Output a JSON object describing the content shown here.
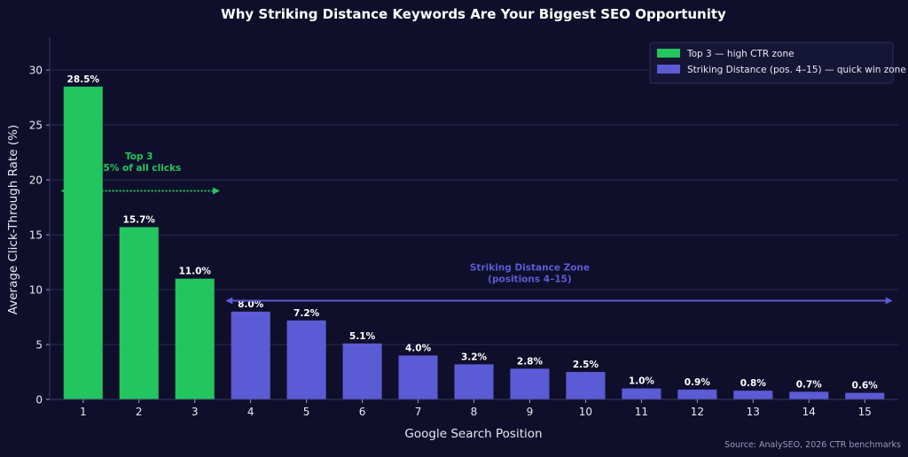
{
  "chart_data": {
    "type": "bar",
    "title": "Why Striking Distance Keywords Are Your Biggest SEO Opportunity",
    "xlabel": "Google Search Position",
    "ylabel": "Average Click-Through Rate (%)",
    "ylim": [
      0,
      33
    ],
    "yticks": [
      0,
      5,
      10,
      15,
      20,
      25,
      30
    ],
    "grid": true,
    "legend_position": "top-right",
    "categories": [
      "1",
      "2",
      "3",
      "4",
      "5",
      "6",
      "7",
      "8",
      "9",
      "10",
      "11",
      "12",
      "13",
      "14",
      "15"
    ],
    "values": [
      28.5,
      15.7,
      11.0,
      8.0,
      7.2,
      5.1,
      4.0,
      3.2,
      2.8,
      2.5,
      1.0,
      0.9,
      0.8,
      0.7,
      0.6
    ],
    "value_labels": [
      "28.5%",
      "15.7%",
      "11.0%",
      "8.0%",
      "7.2%",
      "5.1%",
      "4.0%",
      "3.2%",
      "2.8%",
      "2.5%",
      "1.0%",
      "0.9%",
      "0.8%",
      "0.7%",
      "0.6%"
    ],
    "series": [
      {
        "name": "Top 3 — high CTR zone",
        "color": "#22c55e",
        "positions": [
          1,
          3
        ]
      },
      {
        "name": "Striking Distance (pos. 4–15) — quick win zone",
        "color": "#5b5bd6",
        "positions": [
          4,
          15
        ]
      }
    ],
    "annotations": [
      {
        "lines": [
          "Top 3",
          "55% of all clicks"
        ],
        "color": "#22c55e",
        "arrow_from_x": 0.6,
        "arrow_to_x": 3.45,
        "arrow_y": 19,
        "text_x": 2.0,
        "text_y": 20.8
      },
      {
        "lines": [
          "Striking Distance Zone",
          "(positions 4–15)"
        ],
        "color": "#5b5bd6",
        "arrow_from_x": 3.55,
        "arrow_to_x": 15.5,
        "arrow_y": 9,
        "text_x": 9.0,
        "text_y": 10.7
      }
    ],
    "source": "Source: AnalySEO, 2026 CTR benchmarks"
  },
  "colors": {
    "background": "#0f0f2b",
    "grid": "#2a2a55",
    "axis": "#3a3a66",
    "text": "#e8e8f4",
    "muted": "#9a9ab8"
  }
}
